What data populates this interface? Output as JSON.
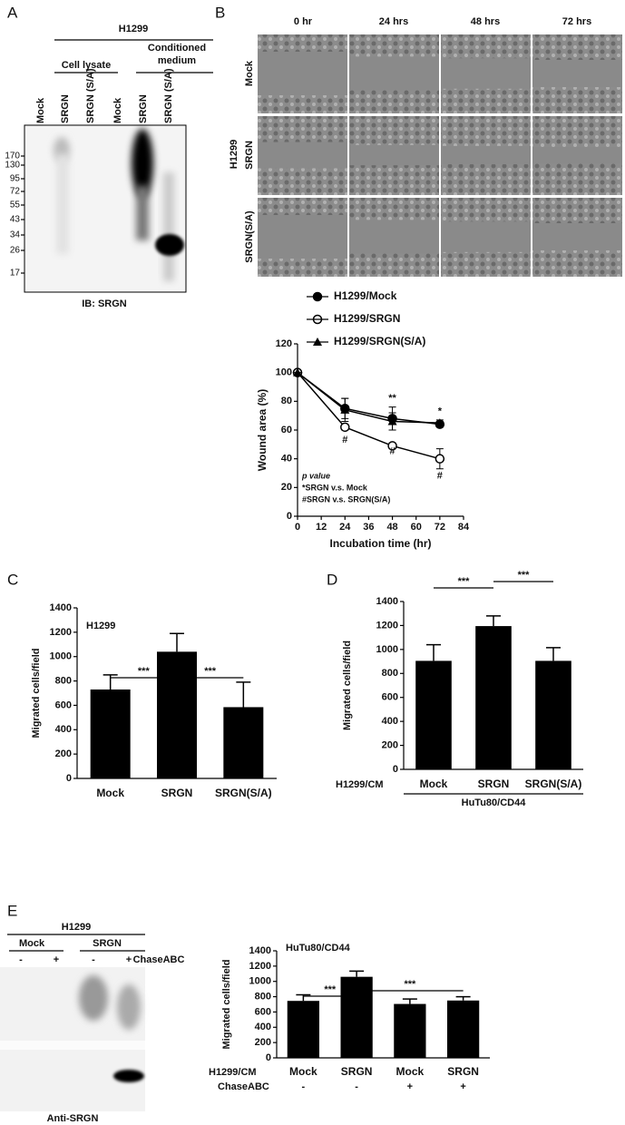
{
  "panel_labels": [
    "A",
    "B",
    "C",
    "D",
    "E"
  ],
  "blot_a": {
    "cell_line": "H1299",
    "groups": [
      "Cell lysate",
      "Conditioned medium"
    ],
    "lanes": [
      "Mock",
      "SRGN",
      "SRGN (S/A)",
      "Mock",
      "SRGN",
      "SRGN (S/A)"
    ],
    "markers": [
      170,
      130,
      95,
      72,
      55,
      43,
      34,
      26,
      17
    ],
    "antibody": "IB: SRGN"
  },
  "migration_images": {
    "times": [
      "0 hr",
      "24 hrs",
      "48 hrs",
      "72 hrs"
    ],
    "cell_line": "H1299",
    "rows": [
      "Mock",
      "SRGN",
      "SRGN(S/A)"
    ]
  },
  "chart_data": [
    {
      "type": "line",
      "xlabel": "Incubation time (hr)",
      "ylabel": "Wound area (%)",
      "x": [
        0,
        24,
        48,
        72
      ],
      "xlim": [
        0,
        84
      ],
      "xticks": [
        0,
        12,
        24,
        36,
        48,
        60,
        72,
        84
      ],
      "ylim": [
        0,
        120
      ],
      "yticks": [
        0,
        20,
        40,
        60,
        80,
        100,
        120
      ],
      "series": [
        {
          "name": "H1299/Mock",
          "marker": "filled-circle",
          "color": "#000000",
          "values": [
            100,
            75,
            68,
            64
          ],
          "errors": [
            0,
            7,
            8,
            2
          ]
        },
        {
          "name": "H1299/SRGN",
          "marker": "open-circle",
          "color": "#000000",
          "values": [
            100,
            62,
            49,
            40
          ],
          "errors": [
            0,
            2,
            2,
            7
          ]
        },
        {
          "name": "H1299/SRGN(S/A)",
          "marker": "triangle",
          "color": "#000000",
          "values": [
            100,
            74,
            66,
            65
          ],
          "errors": [
            0,
            8,
            6,
            2
          ]
        }
      ],
      "annotations": [
        "**",
        "*",
        "#",
        "#",
        "#"
      ],
      "note": [
        "p value",
        "*SRGN v.s. Mock",
        "#SRGN v.s. SRGN(S/A)"
      ]
    },
    {
      "type": "bar",
      "inset_label": "H1299",
      "ylabel": "Migrated cells/field",
      "categories": [
        "Mock",
        "SRGN",
        "SRGN(S/A)"
      ],
      "values": [
        730,
        1040,
        585
      ],
      "errors": [
        120,
        150,
        205
      ],
      "color": "#000000",
      "ylim": [
        0,
        1400
      ],
      "yticks": [
        0,
        200,
        400,
        600,
        800,
        1000,
        1200,
        1400
      ],
      "brackets": [
        "***",
        "***"
      ]
    },
    {
      "type": "bar",
      "ylabel": "Migrated cells/field",
      "category_row_label": "H1299/CM",
      "group_label": "HuTu80/CD44",
      "categories": [
        "Mock",
        "SRGN",
        "SRGN(S/A)"
      ],
      "values": [
        905,
        1195,
        905
      ],
      "errors": [
        135,
        85,
        110
      ],
      "color": "#000000",
      "ylim": [
        0,
        1400
      ],
      "yticks": [
        0,
        200,
        400,
        600,
        800,
        1000,
        1200,
        1400
      ],
      "brackets": [
        "***",
        "***"
      ]
    },
    {
      "type": "bar",
      "inset_label": "HuTu80/CD44",
      "ylabel": "Migrated cells/field",
      "category_row_label": "H1299/CM",
      "treatment_label": "ChaseABC",
      "categories": [
        "Mock",
        "SRGN",
        "Mock",
        "SRGN"
      ],
      "treatment": [
        "-",
        "-",
        "+",
        "+"
      ],
      "values": [
        745,
        1060,
        705,
        750
      ],
      "errors": [
        80,
        75,
        65,
        50
      ],
      "color": "#000000",
      "ylim": [
        0,
        1400
      ],
      "yticks": [
        0,
        200,
        400,
        600,
        800,
        1000,
        1200,
        1400
      ],
      "brackets": [
        "***",
        "***"
      ]
    }
  ],
  "blot_e": {
    "cell_line": "H1299",
    "groups": [
      "Mock",
      "SRGN"
    ],
    "treatment_label": "ChaseABC",
    "treatments": [
      "-",
      "+",
      "-",
      "+"
    ],
    "antibody": "Anti-SRGN"
  }
}
